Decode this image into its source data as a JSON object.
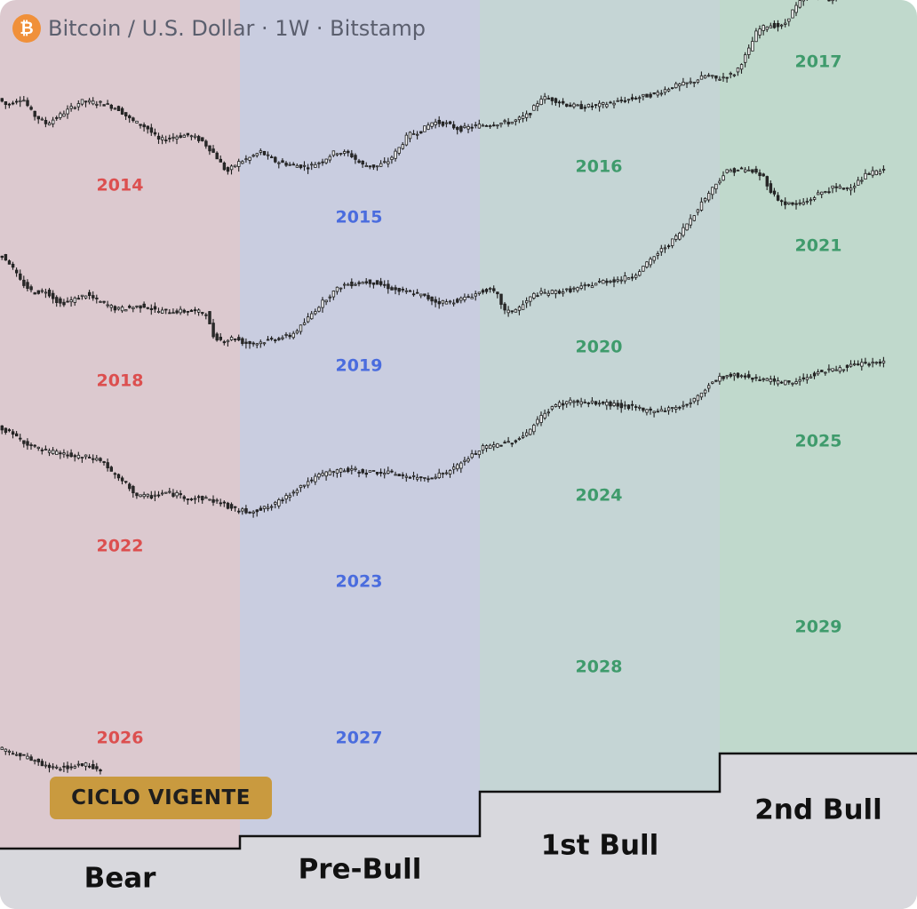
{
  "header": {
    "icon": "bitcoin-icon",
    "icon_glyph": "₿",
    "title": "Bitcoin / U.S. Dollar · 1W · Bitstamp"
  },
  "badge": {
    "label": "CICLO VIGENTE"
  },
  "colors": {
    "bear_zone": "#dcc9cf",
    "prebull_zone": "#c9cde0",
    "bull1_zone": "#c5d5d5",
    "bull2_zone": "#c0d9cc",
    "footer_bg": "#d8d8dd",
    "bear_year": "#dc4f4f",
    "prebull_year": "#4a6cde",
    "bull_year": "#3f9b6c",
    "candle_up": "#2a2a2a",
    "candle_down": "#2a2a2a",
    "badge": "#c99a3f"
  },
  "chart_data": {
    "type": "candlestick-cycle-comparison",
    "title": "Bitcoin / U.S. Dollar · 1W · Bitstamp",
    "phases": [
      {
        "id": "bear",
        "label": "Bear"
      },
      {
        "id": "prebull",
        "label": "Pre-Bull"
      },
      {
        "id": "bull1",
        "label": "1st Bull"
      },
      {
        "id": "bull2",
        "label": "2nd Bull"
      }
    ],
    "cycles": [
      {
        "years": [
          "2014",
          "2015",
          "2016",
          "2017"
        ],
        "path": [
          [
            0,
            0.905
          ],
          [
            10,
            0.885
          ],
          [
            28,
            0.905
          ],
          [
            40,
            0.86
          ],
          [
            55,
            0.835
          ],
          [
            72,
            0.86
          ],
          [
            94,
            0.895
          ],
          [
            118,
            0.89
          ],
          [
            136,
            0.875
          ],
          [
            150,
            0.845
          ],
          [
            168,
            0.825
          ],
          [
            182,
            0.79
          ],
          [
            198,
            0.8
          ],
          [
            214,
            0.805
          ],
          [
            230,
            0.79
          ],
          [
            244,
            0.755
          ],
          [
            258,
            0.705
          ],
          [
            270,
            0.73
          ],
          [
            285,
            0.745
          ],
          [
            296,
            0.76
          ],
          [
            312,
            0.735
          ],
          [
            330,
            0.725
          ],
          [
            350,
            0.72
          ],
          [
            365,
            0.735
          ],
          [
            380,
            0.76
          ],
          [
            396,
            0.755
          ],
          [
            410,
            0.725
          ],
          [
            426,
            0.72
          ],
          [
            440,
            0.735
          ],
          [
            452,
            0.77
          ],
          [
            462,
            0.805
          ],
          [
            476,
            0.815
          ],
          [
            490,
            0.84
          ],
          [
            505,
            0.835
          ],
          [
            520,
            0.82
          ],
          [
            540,
            0.83
          ],
          [
            560,
            0.835
          ],
          [
            580,
            0.84
          ],
          [
            598,
            0.86
          ],
          [
            612,
            0.905
          ],
          [
            626,
            0.9
          ],
          [
            642,
            0.885
          ],
          [
            656,
            0.88
          ],
          [
            678,
            0.885
          ],
          [
            700,
            0.895
          ],
          [
            720,
            0.905
          ],
          [
            740,
            0.915
          ],
          [
            760,
            0.935
          ],
          [
            780,
            0.945
          ],
          [
            798,
            0.965
          ],
          [
            810,
            0.955
          ],
          [
            830,
            0.97
          ],
          [
            845,
            1.03
          ],
          [
            855,
            1.085
          ],
          [
            868,
            1.1
          ],
          [
            884,
            1.095
          ],
          [
            894,
            1.135
          ],
          [
            908,
            1.175
          ],
          [
            920,
            1.19
          ],
          [
            934,
            1.165
          ],
          [
            948,
            1.185
          ],
          [
            960,
            1.215
          ],
          [
            972,
            1.255
          ],
          [
            984,
            1.31
          ],
          [
            994,
            1.4
          ]
        ]
      },
      {
        "years": [
          "2018",
          "2019",
          "2020",
          "2021"
        ],
        "path": [
          [
            0,
            0.94
          ],
          [
            12,
            0.92
          ],
          [
            26,
            0.865
          ],
          [
            40,
            0.835
          ],
          [
            55,
            0.84
          ],
          [
            70,
            0.805
          ],
          [
            85,
            0.815
          ],
          [
            100,
            0.83
          ],
          [
            115,
            0.81
          ],
          [
            135,
            0.79
          ],
          [
            150,
            0.795
          ],
          [
            165,
            0.8
          ],
          [
            180,
            0.785
          ],
          [
            200,
            0.785
          ],
          [
            220,
            0.785
          ],
          [
            235,
            0.78
          ],
          [
            242,
            0.72
          ],
          [
            254,
            0.705
          ],
          [
            266,
            0.715
          ],
          [
            278,
            0.7
          ],
          [
            292,
            0.7
          ],
          [
            310,
            0.71
          ],
          [
            330,
            0.72
          ],
          [
            342,
            0.745
          ],
          [
            356,
            0.785
          ],
          [
            372,
            0.825
          ],
          [
            388,
            0.855
          ],
          [
            402,
            0.86
          ],
          [
            418,
            0.865
          ],
          [
            434,
            0.855
          ],
          [
            450,
            0.84
          ],
          [
            466,
            0.835
          ],
          [
            480,
            0.825
          ],
          [
            494,
            0.81
          ],
          [
            510,
            0.81
          ],
          [
            526,
            0.82
          ],
          [
            542,
            0.835
          ],
          [
            552,
            0.845
          ],
          [
            562,
            0.83
          ],
          [
            572,
            0.78
          ],
          [
            588,
            0.795
          ],
          [
            604,
            0.83
          ],
          [
            620,
            0.835
          ],
          [
            640,
            0.84
          ],
          [
            660,
            0.85
          ],
          [
            680,
            0.865
          ],
          [
            700,
            0.87
          ],
          [
            715,
            0.88
          ],
          [
            730,
            0.91
          ],
          [
            745,
            0.945
          ],
          [
            758,
            0.97
          ],
          [
            770,
            1.0
          ],
          [
            782,
            1.04
          ],
          [
            795,
            1.085
          ],
          [
            808,
            1.125
          ],
          [
            820,
            1.16
          ],
          [
            835,
            1.165
          ],
          [
            850,
            1.16
          ],
          [
            862,
            1.145
          ],
          [
            872,
            1.1
          ],
          [
            884,
            1.075
          ],
          [
            898,
            1.07
          ],
          [
            912,
            1.08
          ],
          [
            924,
            1.1
          ],
          [
            940,
            1.115
          ],
          [
            956,
            1.115
          ],
          [
            968,
            1.13
          ],
          [
            980,
            1.155
          ],
          [
            994,
            1.16
          ]
        ]
      },
      {
        "years": [
          "2022",
          "2023",
          "2024",
          "2025"
        ],
        "path": [
          [
            0,
            0.955
          ],
          [
            14,
            0.935
          ],
          [
            28,
            0.915
          ],
          [
            42,
            0.895
          ],
          [
            56,
            0.885
          ],
          [
            72,
            0.88
          ],
          [
            88,
            0.87
          ],
          [
            104,
            0.87
          ],
          [
            118,
            0.86
          ],
          [
            132,
            0.82
          ],
          [
            146,
            0.795
          ],
          [
            158,
            0.765
          ],
          [
            172,
            0.765
          ],
          [
            188,
            0.775
          ],
          [
            202,
            0.77
          ],
          [
            216,
            0.76
          ],
          [
            232,
            0.76
          ],
          [
            250,
            0.75
          ],
          [
            266,
            0.73
          ],
          [
            280,
            0.725
          ],
          [
            296,
            0.73
          ],
          [
            310,
            0.74
          ],
          [
            322,
            0.76
          ],
          [
            336,
            0.785
          ],
          [
            350,
            0.805
          ],
          [
            366,
            0.825
          ],
          [
            384,
            0.835
          ],
          [
            400,
            0.835
          ],
          [
            416,
            0.83
          ],
          [
            432,
            0.83
          ],
          [
            450,
            0.825
          ],
          [
            466,
            0.815
          ],
          [
            482,
            0.815
          ],
          [
            500,
            0.825
          ],
          [
            514,
            0.84
          ],
          [
            528,
            0.865
          ],
          [
            546,
            0.895
          ],
          [
            566,
            0.905
          ],
          [
            584,
            0.915
          ],
          [
            600,
            0.945
          ],
          [
            614,
            0.985
          ],
          [
            628,
            1.01
          ],
          [
            646,
            1.02
          ],
          [
            664,
            1.015
          ],
          [
            680,
            1.015
          ],
          [
            696,
            1.01
          ],
          [
            712,
            1.005
          ],
          [
            728,
            0.995
          ],
          [
            742,
            0.995
          ],
          [
            758,
            1.0
          ],
          [
            774,
            1.01
          ],
          [
            788,
            1.03
          ],
          [
            800,
            1.065
          ],
          [
            814,
            1.085
          ],
          [
            830,
            1.09
          ],
          [
            846,
            1.085
          ],
          [
            862,
            1.08
          ],
          [
            878,
            1.07
          ],
          [
            894,
            1.07
          ],
          [
            910,
            1.085
          ],
          [
            926,
            1.1
          ],
          [
            942,
            1.105
          ],
          [
            960,
            1.115
          ],
          [
            976,
            1.12
          ],
          [
            994,
            1.125
          ]
        ]
      },
      {
        "years": [
          "2026",
          "2027",
          "2028",
          "2029"
        ],
        "path": [
          [
            0,
            0.95
          ],
          [
            15,
            0.935
          ],
          [
            30,
            0.925
          ],
          [
            45,
            0.91
          ],
          [
            58,
            0.895
          ],
          [
            72,
            0.895
          ],
          [
            86,
            0.9
          ],
          [
            100,
            0.905
          ],
          [
            114,
            0.89
          ]
        ]
      }
    ]
  }
}
